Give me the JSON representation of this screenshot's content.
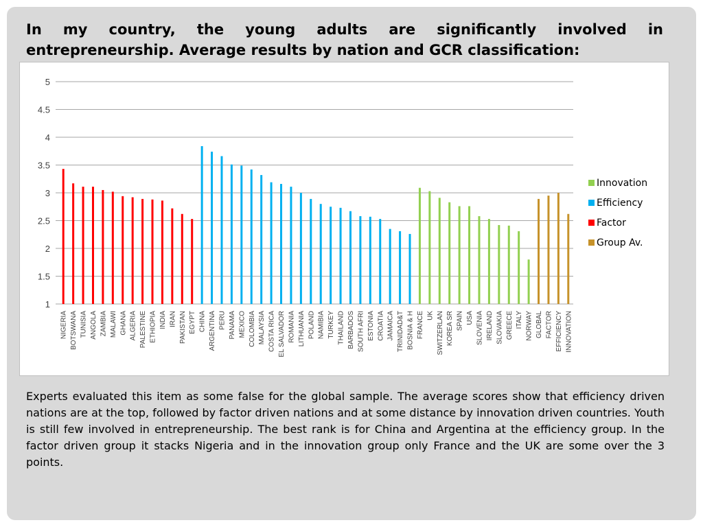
{
  "slide": {
    "title": "In my country, the young adults are significantly involved in entrepreneurship. Average results by nation and GCR classification:",
    "body": "Experts evaluated this item as some false for the global sample. The average scores show that efficiency driven nations are at the top, followed by factor driven nations and at some distance by innovation driven countries. Youth is still few involved in entrepreneurship. The best rank is for China and Argentina at the efficiency group. In the factor driven group it stacks Nigeria and in the innovation group  only France and the UK are some over the 3 points."
  },
  "chart_data": {
    "type": "bar",
    "ylim": [
      1,
      5
    ],
    "yticks": [
      "1",
      "1.5",
      "2",
      "2.5",
      "3",
      "3.5",
      "4",
      "4.5",
      "5"
    ],
    "grid": "horizontal",
    "legend_position": "right",
    "colors": {
      "Innovation": "#92d050",
      "Efficiency": "#00b0f0",
      "Factor": "#ff0000",
      "Group Av.": "#c6922a"
    },
    "legend": [
      "Innovation",
      "Efficiency",
      "Factor",
      "Group Av."
    ],
    "categories": [
      "NIGERIA",
      "BOTSWANA",
      "TUNISIA",
      "ANGOLA",
      "ZAMBIA",
      "MALAWI",
      "GHANA",
      "ALGERIA",
      "PALESTINE",
      "ETHIOPIA",
      "INDIA",
      "IRAN",
      "PAKISTAN",
      "EGYPT",
      "CHINA",
      "ARGENTINA",
      "PERU",
      "PANAMA",
      "MEXICO",
      "COLOMBIA",
      "MALAYSIA",
      "COSTA RICA",
      "EL SALVADOR",
      "ROMANIA",
      "LITHUANIA",
      "POLAND",
      "NAMIBIA",
      "TURKEY",
      "THAILAND",
      "BARBADOS",
      "SOUTH AFRI",
      "ESTONIA",
      "CROATIA",
      "JAMAICA",
      "TRINIDAD&T",
      "BOSNIA & H",
      "FRANCE",
      "UK",
      "SWITZERLAN",
      "KOREA SR",
      "SPAIN",
      "USA",
      "SLOVENIA",
      "IRELAND",
      "SLOVAKIA",
      "GREECE",
      "ITALY",
      "NORWAY",
      "GLOBAL",
      "FACTOR",
      "EFFICIENCY",
      "INNOVATION"
    ],
    "groups": [
      "Factor",
      "Factor",
      "Factor",
      "Factor",
      "Factor",
      "Factor",
      "Factor",
      "Factor",
      "Factor",
      "Factor",
      "Factor",
      "Factor",
      "Factor",
      "Factor",
      "Efficiency",
      "Efficiency",
      "Efficiency",
      "Efficiency",
      "Efficiency",
      "Efficiency",
      "Efficiency",
      "Efficiency",
      "Efficiency",
      "Efficiency",
      "Efficiency",
      "Efficiency",
      "Efficiency",
      "Efficiency",
      "Efficiency",
      "Efficiency",
      "Efficiency",
      "Efficiency",
      "Efficiency",
      "Efficiency",
      "Efficiency",
      "Efficiency",
      "Innovation",
      "Innovation",
      "Innovation",
      "Innovation",
      "Innovation",
      "Innovation",
      "Innovation",
      "Innovation",
      "Innovation",
      "Innovation",
      "Innovation",
      "Innovation",
      "Group Av.",
      "Group Av.",
      "Group Av.",
      "Group Av."
    ],
    "values": [
      3.43,
      3.17,
      3.11,
      3.11,
      3.05,
      3.02,
      2.94,
      2.92,
      2.89,
      2.88,
      2.86,
      2.72,
      2.62,
      2.53,
      3.84,
      3.74,
      3.66,
      3.51,
      3.49,
      3.42,
      3.32,
      3.19,
      3.16,
      3.11,
      3.0,
      2.89,
      2.8,
      2.75,
      2.73,
      2.67,
      2.58,
      2.57,
      2.53,
      2.35,
      2.31,
      2.26,
      3.09,
      3.03,
      2.91,
      2.83,
      2.76,
      2.76,
      2.58,
      2.53,
      2.42,
      2.41,
      2.31,
      1.8,
      2.89,
      2.95,
      3.0,
      2.62
    ]
  }
}
